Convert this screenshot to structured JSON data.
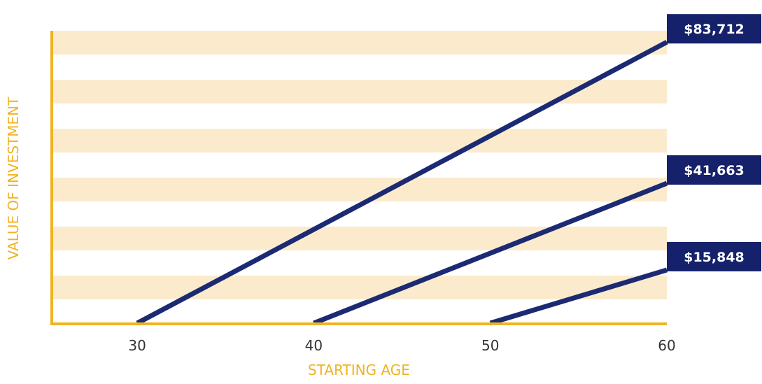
{
  "chart_data": {
    "type": "line",
    "title": "",
    "xlabel": "STARTING AGE",
    "ylabel": "VALUE OF INVESTMENT",
    "x_ticks": [
      30,
      40,
      50,
      60
    ],
    "xlim": [
      25.2,
      60
    ],
    "ylim": [
      0,
      90000
    ],
    "grid": "horizontal alternating bands",
    "legend": "none",
    "series": [
      {
        "x": [
          30,
          60
        ],
        "y": [
          0,
          83712
        ],
        "label": "$83,712"
      },
      {
        "x": [
          40,
          60
        ],
        "y": [
          0,
          41663
        ],
        "label": "$41,663"
      },
      {
        "x": [
          50,
          60
        ],
        "y": [
          0,
          15848
        ],
        "label": "$15,848"
      }
    ]
  },
  "colors": {
    "axis": "#F0B323",
    "band": "#FBEBCC",
    "line": "#1B2A72",
    "label_bg": "#15216A",
    "label_text": "#FFFFFF",
    "tick_text": "#333333",
    "axis_title": "#F0B323"
  }
}
